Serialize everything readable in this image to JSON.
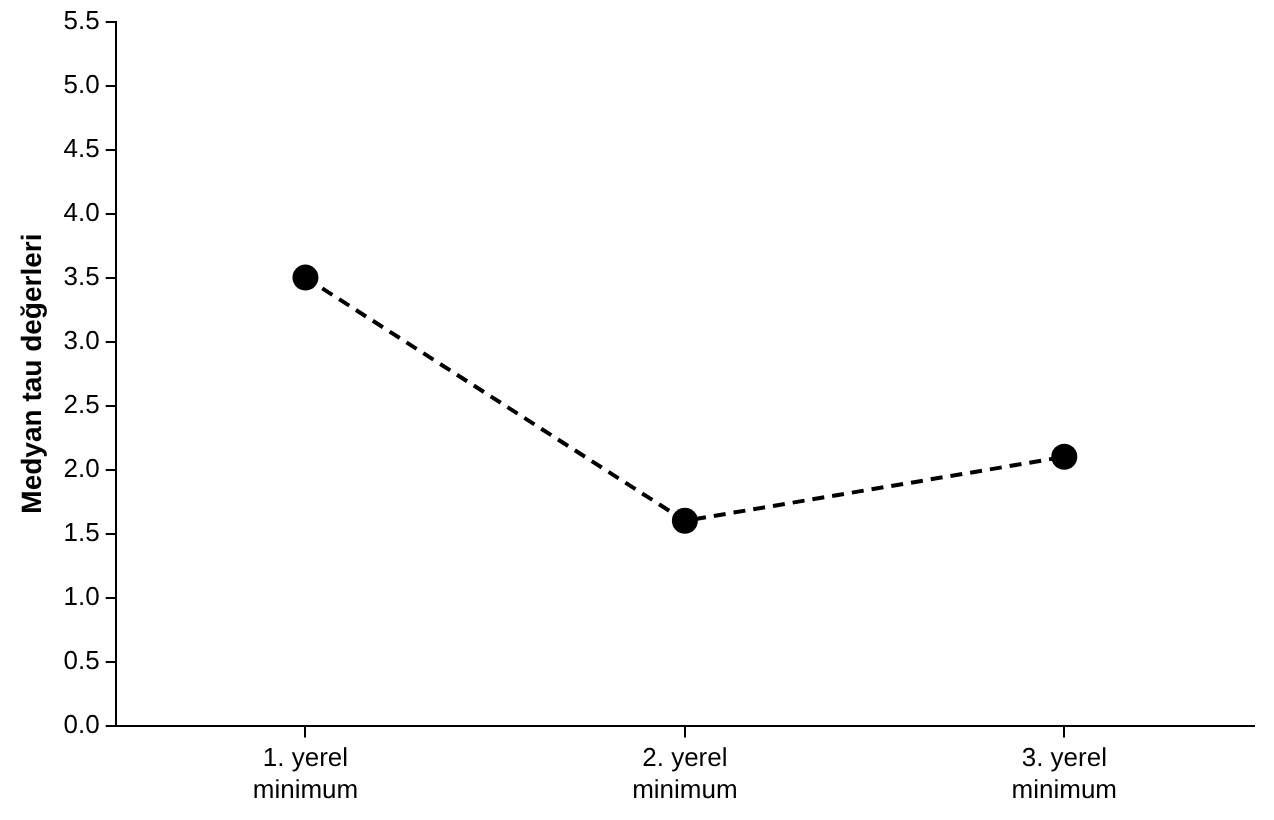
{
  "chart_data": {
    "type": "line",
    "ylabel": "Medyan tau değerleri",
    "categories": [
      "1. yerel minimum",
      "2. yerel minimum",
      "3. yerel minimum"
    ],
    "series": [
      {
        "color": "#000000",
        "values": [
          3.5,
          1.6,
          2.1
        ]
      }
    ],
    "ylim": [
      0,
      5.5
    ],
    "yticks": [
      {
        "value": 0,
        "label": "0.0"
      },
      0.5,
      {
        "value": 1,
        "label": "1.0"
      },
      1.5,
      {
        "value": 2,
        "label": "2.0"
      },
      2.5,
      {
        "value": 3,
        "label": "3.0"
      },
      3.5,
      {
        "value": 4,
        "label": "4.0"
      },
      4.5,
      {
        "value": 5,
        "label": "5.0"
      },
      5.5
    ],
    "grid": false,
    "legend": false,
    "marker": "circle",
    "line_style": "dashed"
  }
}
